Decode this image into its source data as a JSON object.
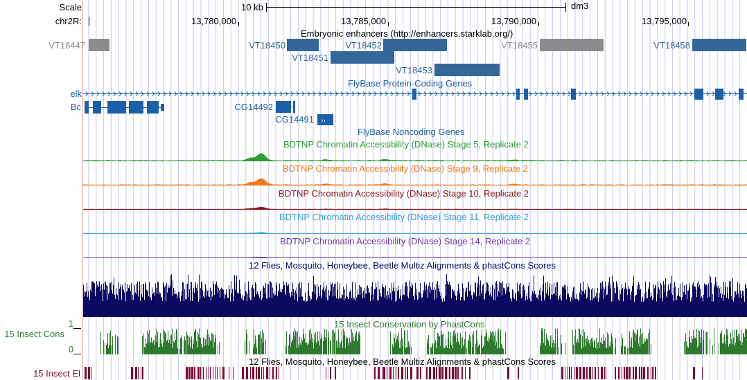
{
  "colors": {
    "gene": "#1a5fa8",
    "enhancer": "#336699",
    "enhancer_grey": "#8c8c8c",
    "guide_line": "#c6c6f0",
    "red_divider": "#f0a0a0",
    "stage5": "#2e9e36",
    "stage9": "#f07818",
    "stage10": "#8a1414",
    "stage11": "#3a9ed8",
    "stage14": "#6a3aa8",
    "multiz": "#0a0a60",
    "phastcons": "#2d7a2d",
    "elements": "#7a0a30",
    "text": "#000000"
  },
  "ruler": {
    "scale_label": "Scale",
    "chrom_label": "chr2R:",
    "scale_bar_text": "10 kb",
    "assembly": "dm3",
    "positions": [
      "13,780,000",
      "13,785,000",
      "13,790,000",
      "13,795,000"
    ]
  },
  "enhancers": {
    "title": "Embryonic enhancers (http://enhancers.starklab.org/)",
    "items": [
      {
        "label": "VT18447",
        "grey": true
      },
      {
        "label": "VT18450",
        "grey": false
      },
      {
        "label": "VT18452",
        "grey": false
      },
      {
        "label": "VT18455",
        "grey": true
      },
      {
        "label": "VT18458",
        "grey": false
      },
      {
        "label": "VT18451",
        "grey": false
      },
      {
        "label": "VT18453",
        "grey": false
      }
    ]
  },
  "genes": {
    "title": "FlyBase Protein-Coding Genes",
    "elk": "elk",
    "bc": "Bc",
    "cg14492": "CG14492",
    "cg14491": "CG14491"
  },
  "noncoding": {
    "title": "FlyBase Noncoding Genes"
  },
  "dnase": [
    {
      "title": "BDTNP Chromatin Accessibility (DNase) Stage 5, Replicate 2",
      "color_key": "stage5"
    },
    {
      "title": "BDTNP Chromatin Accessibility (DNase) Stage 9, Replicate 2",
      "color_key": "stage9"
    },
    {
      "title": "BDTNP Chromatin Accessibility (DNase) Stage 10, Replicate 2",
      "color_key": "stage10"
    },
    {
      "title": "BDTNP Chromatin Accessibility (DNase) Stage 11, Replicate 2",
      "color_key": "stage11"
    },
    {
      "title": "BDTNP Chromatin Accessibility (DNase) Stage 14, Replicate 2",
      "color_key": "stage14"
    }
  ],
  "multiz": {
    "title": "12 Flies, Mosquito, Honeybee, Beetle Multiz Alignments & phastCons Scores"
  },
  "cons": {
    "title": "15 Insect Conservation by PhastCons",
    "side_label": "15 Insect Cons",
    "axis_max": "1",
    "axis_min": "0"
  },
  "elements": {
    "title": "12 Flies, Mosquito, Honeybee, Beetle Multiz Alignments & phastCons Scores",
    "side_label": "15 Insect El"
  }
}
